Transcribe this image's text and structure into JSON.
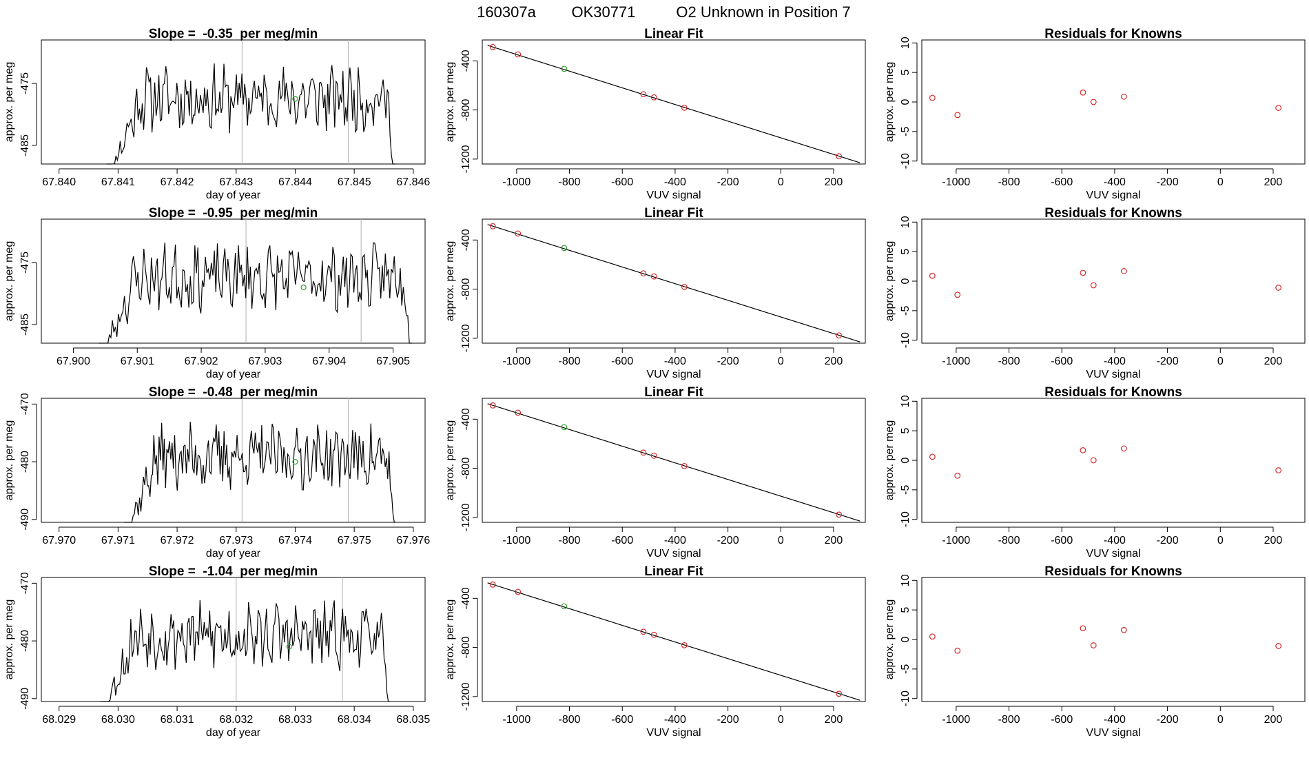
{
  "header": {
    "run_id": "160307a",
    "tank": "OK30771",
    "description": "O2 Unknown in Position  7"
  },
  "labels": {
    "time_xlabel": "day of year",
    "time_ylabel": "approx. per meg",
    "fit_title": "Linear Fit",
    "fit_xlabel": "VUV signal",
    "fit_ylabel": "approx. per meg",
    "resid_title": "Residuals for Knowns",
    "resid_xlabel": "VUV signal",
    "resid_ylabel": "approx. per meg"
  },
  "colors": {
    "line": "#000000",
    "known_points": "#d62728",
    "unknown_point": "#2ca02c",
    "window_lines": "#b0b0b0",
    "fit_line": "#000000"
  },
  "fit": {
    "x": [
      -1090,
      -995,
      -820,
      -520,
      -480,
      -365,
      220
    ],
    "y": [
      -288,
      -347,
      -465,
      -672,
      -697,
      -782,
      -1177
    ],
    "types": [
      "known",
      "known",
      "unknown",
      "known",
      "known",
      "known",
      "known"
    ],
    "line": {
      "x0": -1110,
      "y0": -274,
      "x1": 300,
      "y1": -1230
    }
  },
  "chart_data": [
    {
      "type": "line",
      "panel": "time-series",
      "title_prefix": "Slope =  ",
      "slope": "-0.35",
      "title_suffix": "  per meg/min",
      "xlabel": "day of year",
      "ylabel": "approx. per meg",
      "xlim": [
        67.8397,
        67.8462
      ],
      "ylim": [
        -488,
        -468
      ],
      "xticks": [
        "67.840",
        "67.841",
        "67.842",
        "67.843",
        "67.844",
        "67.845",
        "67.846"
      ],
      "yticks": [
        "-475",
        "-485"
      ],
      "data_start": 67.8408,
      "data_end": 67.8457,
      "series_seed": 11,
      "window_lines": [
        67.8431,
        67.8449
      ],
      "unknown_point": {
        "x": 67.844,
        "y": -477.5
      }
    },
    {
      "type": "scatter",
      "panel": "linear-fit",
      "title": "Linear Fit",
      "xlabel": "VUV signal",
      "ylabel": "approx. per meg",
      "xlim": [
        -1130,
        320
      ],
      "ylim": [
        -1240,
        -230
      ],
      "xticks": [
        "-1000",
        "-800",
        "-600",
        "-400",
        "-200",
        "0",
        "200"
      ],
      "yticks": [
        "-400",
        "-800",
        "-1200"
      ]
    },
    {
      "type": "scatter",
      "panel": "residuals",
      "title": "Residuals for Knowns",
      "xlabel": "VUV signal",
      "ylabel": "approx. per meg",
      "xlim": [
        -1130,
        320
      ],
      "ylim": [
        -10.5,
        10.5
      ],
      "xticks": [
        "-1000",
        "-800",
        "-600",
        "-400",
        "-200",
        "0",
        "200"
      ],
      "yticks": [
        "10",
        "5",
        "0",
        "-5",
        "-10"
      ],
      "x": [
        -1090,
        -995,
        -520,
        -480,
        -365,
        220
      ],
      "y": [
        0.7,
        -2.2,
        1.6,
        0.0,
        0.9,
        -1.0
      ]
    },
    {
      "type": "line",
      "panel": "time-series",
      "title_prefix": "Slope =  ",
      "slope": "-0.95",
      "title_suffix": "  per meg/min",
      "xlabel": "day of year",
      "ylabel": "approx. per meg",
      "xlim": [
        67.8995,
        67.9055
      ],
      "ylim": [
        -488,
        -468
      ],
      "xticks": [
        "67.900",
        "67.901",
        "67.902",
        "67.903",
        "67.904",
        "67.905"
      ],
      "yticks": [
        "-475",
        "-485"
      ],
      "data_start": 67.9004,
      "data_end": 67.9053,
      "series_seed": 23,
      "window_lines": [
        67.9027,
        67.9045
      ],
      "unknown_point": {
        "x": 67.9036,
        "y": -479.0
      }
    },
    {
      "type": "scatter",
      "panel": "linear-fit",
      "title": "Linear Fit",
      "xlabel": "VUV signal",
      "ylabel": "approx. per meg",
      "xlim": [
        -1130,
        320
      ],
      "ylim": [
        -1240,
        -230
      ],
      "xticks": [
        "-1000",
        "-800",
        "-600",
        "-400",
        "-200",
        "0",
        "200"
      ],
      "yticks": [
        "-400",
        "-800",
        "-1200"
      ]
    },
    {
      "type": "scatter",
      "panel": "residuals",
      "title": "Residuals for Knowns",
      "xlabel": "VUV signal",
      "ylabel": "approx. per meg",
      "xlim": [
        -1130,
        320
      ],
      "ylim": [
        -10.5,
        10.5
      ],
      "xticks": [
        "-1000",
        "-800",
        "-600",
        "-400",
        "-200",
        "0",
        "200"
      ],
      "yticks": [
        "10",
        "5",
        "0",
        "-5",
        "-10"
      ],
      "x": [
        -1090,
        -995,
        -520,
        -480,
        -365,
        220
      ],
      "y": [
        0.9,
        -2.3,
        1.4,
        -0.7,
        1.7,
        -1.1
      ]
    },
    {
      "type": "line",
      "panel": "time-series",
      "title_prefix": "Slope =  ",
      "slope": "-0.48",
      "title_suffix": "  per meg/min",
      "xlabel": "day of year",
      "ylabel": "approx. per meg",
      "xlim": [
        67.9697,
        67.9762
      ],
      "ylim": [
        -490.5,
        -469
      ],
      "xticks": [
        "67.970",
        "67.971",
        "67.972",
        "67.973",
        "67.974",
        "67.975",
        "67.976"
      ],
      "yticks": [
        "-470",
        "-480",
        "-490"
      ],
      "data_start": 67.9711,
      "data_end": 67.9757,
      "series_seed": 37,
      "window_lines": [
        67.9731,
        67.9749
      ],
      "unknown_point": {
        "x": 67.974,
        "y": -480.0
      }
    },
    {
      "type": "scatter",
      "panel": "linear-fit",
      "title": "Linear Fit",
      "xlabel": "VUV signal",
      "ylabel": "approx. per meg",
      "xlim": [
        -1130,
        320
      ],
      "ylim": [
        -1240,
        -230
      ],
      "xticks": [
        "-1000",
        "-800",
        "-600",
        "-400",
        "-200",
        "0",
        "200"
      ],
      "yticks": [
        "-400",
        "-800",
        "-1200"
      ]
    },
    {
      "type": "scatter",
      "panel": "residuals",
      "title": "Residuals for Knowns",
      "xlabel": "VUV signal",
      "ylabel": "approx. per meg",
      "xlim": [
        -1130,
        320
      ],
      "ylim": [
        -10.5,
        10.5
      ],
      "xticks": [
        "-1000",
        "-800",
        "-600",
        "-400",
        "-200",
        "0",
        "200"
      ],
      "yticks": [
        "10",
        "5",
        "0",
        "-5",
        "-10"
      ],
      "x": [
        -1090,
        -995,
        -520,
        -480,
        -365,
        220
      ],
      "y": [
        0.6,
        -2.6,
        1.7,
        0.0,
        2.0,
        -1.7
      ]
    },
    {
      "type": "line",
      "panel": "time-series",
      "title_prefix": "Slope =  ",
      "slope": "-1.04",
      "title_suffix": "  per meg/min",
      "xlabel": "day of year",
      "ylabel": "approx. per meg",
      "xlim": [
        68.0287,
        68.0352
      ],
      "ylim": [
        -490.5,
        -469
      ],
      "xticks": [
        "68.029",
        "68.030",
        "68.031",
        "68.032",
        "68.033",
        "68.034",
        "68.035"
      ],
      "yticks": [
        "-470",
        "-480",
        "-490"
      ],
      "data_start": 68.0297,
      "data_end": 68.0346,
      "series_seed": 53,
      "window_lines": [
        68.032,
        68.0338
      ],
      "unknown_point": {
        "x": 68.0329,
        "y": -481.0
      }
    },
    {
      "type": "scatter",
      "panel": "linear-fit",
      "title": "Linear Fit",
      "xlabel": "VUV signal",
      "ylabel": "approx. per meg",
      "xlim": [
        -1130,
        320
      ],
      "ylim": [
        -1240,
        -230
      ],
      "xticks": [
        "-1000",
        "-800",
        "-600",
        "-400",
        "-200",
        "0",
        "200"
      ],
      "yticks": [
        "-400",
        "-800",
        "-1200"
      ]
    },
    {
      "type": "scatter",
      "panel": "residuals",
      "title": "Residuals for Knowns",
      "xlabel": "VUV signal",
      "ylabel": "approx. per meg",
      "xlim": [
        -1130,
        320
      ],
      "ylim": [
        -10.5,
        10.5
      ],
      "xticks": [
        "-1000",
        "-800",
        "-600",
        "-400",
        "-200",
        "0",
        "200"
      ],
      "yticks": [
        "10",
        "5",
        "0",
        "-5",
        "-10"
      ],
      "x": [
        -1090,
        -995,
        -520,
        -480,
        -365,
        220
      ],
      "y": [
        0.5,
        -1.9,
        1.9,
        -1.0,
        1.6,
        -1.1
      ]
    }
  ]
}
